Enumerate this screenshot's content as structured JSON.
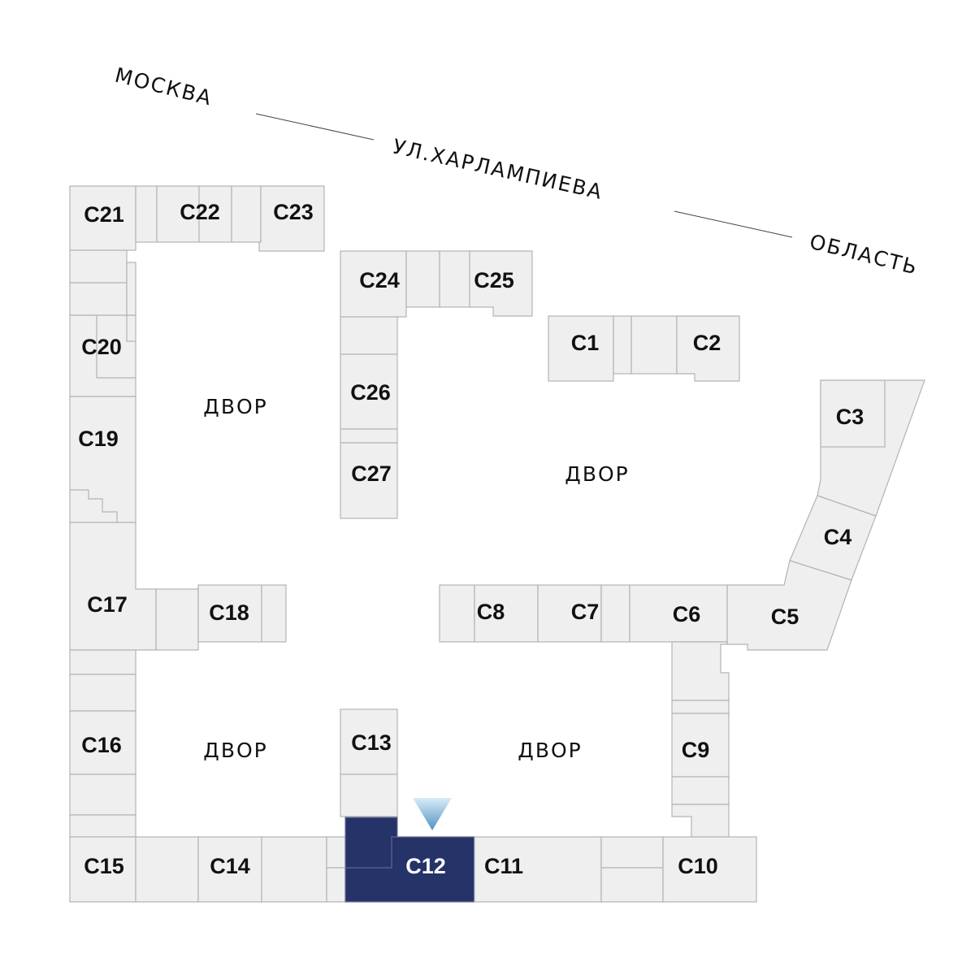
{
  "streets": {
    "left": "МОСКВА",
    "center": "УЛ.ХАРЛАМПИЕВА",
    "right": "ОБЛАСТЬ"
  },
  "yards": [
    "ДВОР",
    "ДВОР",
    "ДВОР",
    "ДВОР"
  ],
  "units": {
    "c1": "С1",
    "c2": "С2",
    "c3": "С3",
    "c4": "С4",
    "c5": "С5",
    "c6": "С6",
    "c7": "С7",
    "c8": "С8",
    "c9": "С9",
    "c10": "С10",
    "c11": "С11",
    "c12": "С12",
    "c13": "С13",
    "c14": "С14",
    "c15": "С15",
    "c16": "С16",
    "c17": "С17",
    "c18": "С18",
    "c19": "С19",
    "c20": "С20",
    "c21": "С21",
    "c22": "С22",
    "c23": "С23",
    "c24": "С24",
    "c25": "С25",
    "c26": "С26",
    "c27": "С27"
  },
  "selected_unit": "С12",
  "colors": {
    "unit_fill": "#efefef",
    "unit_stroke": "#b3b3b3",
    "selected_fill": "#253369",
    "marker": "#5a9ac8"
  }
}
